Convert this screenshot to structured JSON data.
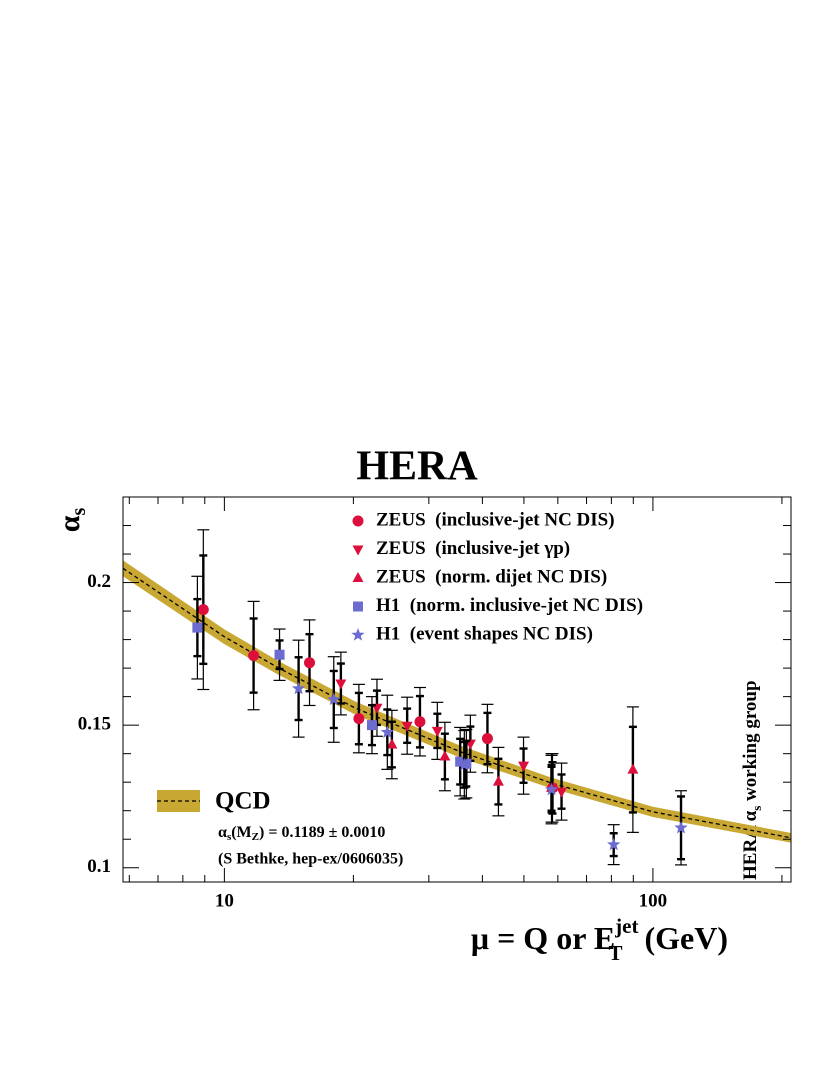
{
  "chart_data": {
    "type": "scatter",
    "title": "HERA",
    "y_label": {
      "main": "α",
      "sub": "s"
    },
    "x_label": {
      "main": "μ = Q or E",
      "sup": "jet",
      "sub": "T",
      "unit": " (GeV)"
    },
    "side_text": {
      "main": "HERA α",
      "sub": "s",
      "rest": " working group"
    },
    "log_x": true,
    "xlim": [
      5.8,
      210
    ],
    "xticks": [
      10,
      100
    ],
    "xminor_ticks": [
      6,
      7,
      8,
      9,
      20,
      30,
      40,
      50,
      60,
      70,
      80,
      90,
      200
    ],
    "ylim": [
      0.095,
      0.23
    ],
    "yticks": [
      0.1,
      0.15,
      0.2
    ],
    "yminor_ticks": [
      0.11,
      0.12,
      0.13,
      0.14,
      0.16,
      0.17,
      0.18,
      0.19,
      0.21,
      0.22
    ],
    "series": [
      {
        "name": "ZEUS  (inclusive-jet NC DIS)",
        "marker": "circle",
        "color": "#dc0f3c",
        "x": [
          8.93,
          11.7,
          15.8,
          20.6,
          28.6,
          41.1,
          58.3
        ],
        "values": [
          0.1905,
          0.1744,
          0.1719,
          0.1523,
          0.1512,
          0.1453,
          0.128
        ],
        "err_stat": [
          0.019,
          0.013,
          0.01,
          0.009,
          0.009,
          0.009,
          0.009
        ],
        "err_total": [
          0.028,
          0.019,
          0.015,
          0.012,
          0.012,
          0.012,
          0.012
        ]
      },
      {
        "name": "ZEUS  (inclusive-jet γp)",
        "marker": "triangle-down",
        "color": "#dc0f3c",
        "x": [
          18.7,
          22.7,
          26.7,
          31.4,
          37.5,
          49.9,
          61.2
        ],
        "values": [
          0.1646,
          0.1561,
          0.1498,
          0.148,
          0.1435,
          0.1358,
          0.1267
        ],
        "err_stat": [
          0.007,
          0.006,
          0.006,
          0.006,
          0.006,
          0.006,
          0.006
        ],
        "err_total": [
          0.011,
          0.01,
          0.01,
          0.01,
          0.01,
          0.01,
          0.01
        ]
      },
      {
        "name": "ZEUS  (norm. dijet NC DIS)",
        "marker": "triangle-up",
        "color": "#dc0f3c",
        "x": [
          24.6,
          32.7,
          43.6,
          58.0,
          89.8
        ],
        "values": [
          0.1432,
          0.139,
          0.1302,
          0.128,
          0.1344
        ],
        "err_stat": [
          0.008,
          0.008,
          0.008,
          0.008,
          0.015
        ],
        "err_total": [
          0.012,
          0.012,
          0.012,
          0.012,
          0.022
        ]
      },
      {
        "name": "H1  (norm. inclusive-jet NC DIS)",
        "marker": "square",
        "color": "#6b6bd0",
        "x": [
          8.65,
          13.45,
          22.1,
          35.5,
          36.7
        ],
        "values": [
          0.1842,
          0.1747,
          0.15,
          0.1372,
          0.1365
        ],
        "err_stat": [
          0.01,
          0.005,
          0.007,
          0.008,
          0.008
        ],
        "err_total": [
          0.018,
          0.009,
          0.01,
          0.012,
          0.012
        ]
      },
      {
        "name": "H1  (event shapes NC DIS)",
        "marker": "star",
        "color": "#6b6bd0",
        "x": [
          14.9,
          18.0,
          24.0,
          36.3,
          58.0,
          81.0,
          116.3
        ],
        "values": [
          0.1628,
          0.159,
          0.1475,
          0.1361,
          0.1274,
          0.1081,
          0.114
        ],
        "err_stat": [
          0.011,
          0.01,
          0.008,
          0.008,
          0.008,
          0.004,
          0.011
        ],
        "err_total": [
          0.017,
          0.015,
          0.013,
          0.012,
          0.012,
          0.007,
          0.013
        ]
      }
    ],
    "qcd": {
      "name": "QCD",
      "color": "#c8a832",
      "x": [
        5.8,
        10,
        13.4,
        20.2,
        35.5,
        57.7,
        100,
        210
      ],
      "values": [
        0.205,
        0.181,
        0.17,
        0.156,
        0.1407,
        0.1298,
        0.1196,
        0.1105
      ],
      "upper": [
        0.2078,
        0.1836,
        0.1724,
        0.1583,
        0.1428,
        0.1317,
        0.1214,
        0.1122
      ],
      "lower": [
        0.2022,
        0.1784,
        0.1676,
        0.1537,
        0.1386,
        0.1279,
        0.1178,
        0.1088
      ],
      "formula": {
        "alpha": "α",
        "sub1": "s",
        "mid": "(M",
        "sub2": "Z",
        "rest": ") = 0.1189 ± 0.0010"
      },
      "reference": "(S Bethke, hep-ex/0606035)"
    }
  }
}
